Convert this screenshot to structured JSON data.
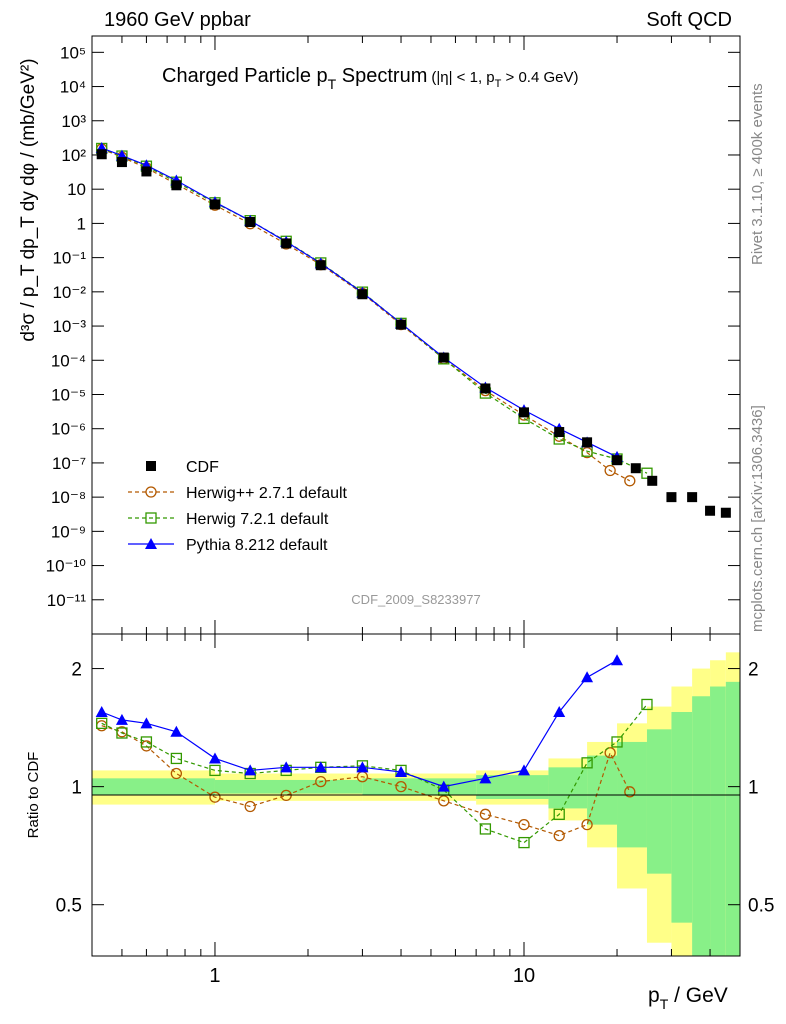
{
  "header": {
    "left": "1960 GeV ppbar",
    "right": "Soft QCD"
  },
  "chart_data": {
    "type": "scatter",
    "title_main": "Charged Particle p",
    "title_main_sub": "T",
    "title_main_rest": " Spectrum",
    "title_cut_a": "(|η| < 1, p",
    "title_cut_sub": "T",
    "title_cut_b": " > 0.4 GeV)",
    "xlabel_main": "p",
    "xlabel_sub": "T",
    "xlabel_rest": " / GeV",
    "ylabel": "d³σ / p_T dp_T dy dφ / (mb/GeV²)",
    "ratio_ylabel": "Ratio to CDF",
    "analysis_id": "CDF_2009_S8233977",
    "side_label_top": "Rivet 3.1.10, ≥ 400k events",
    "side_label_bottom": "mcplots.cern.ch [arXiv:1306.3436]",
    "x_scale": "log",
    "y_scale": "log",
    "xlim": [
      0.4,
      50
    ],
    "ylim": [
      1e-12,
      300000.0
    ],
    "ratio_ylim": [
      0.37,
      2.45
    ],
    "x_ticks": [
      {
        "value": 1,
        "label": "1"
      },
      {
        "value": 10,
        "label": "10"
      }
    ],
    "y_ticks": [
      {
        "value": 100000.0,
        "label": "10⁵"
      },
      {
        "value": 10000.0,
        "label": "10⁴"
      },
      {
        "value": 1000.0,
        "label": "10³"
      },
      {
        "value": 100.0,
        "label": "10²"
      },
      {
        "value": 10,
        "label": "10"
      },
      {
        "value": 1,
        "label": "1"
      },
      {
        "value": 0.1,
        "label": "10⁻¹"
      },
      {
        "value": 0.01,
        "label": "10⁻²"
      },
      {
        "value": 0.001,
        "label": "10⁻³"
      },
      {
        "value": 0.0001,
        "label": "10⁻⁴"
      },
      {
        "value": 1e-05,
        "label": "10⁻⁵"
      },
      {
        "value": 1e-06,
        "label": "10⁻⁶"
      },
      {
        "value": 1e-07,
        "label": "10⁻⁷"
      },
      {
        "value": 1e-08,
        "label": "10⁻⁸"
      },
      {
        "value": 1e-09,
        "label": "10⁻⁹"
      },
      {
        "value": 1e-10,
        "label": "10⁻¹⁰"
      },
      {
        "value": 1e-11,
        "label": "10⁻¹¹"
      }
    ],
    "ratio_ticks": [
      {
        "value": 2,
        "label": "2"
      },
      {
        "value": 1,
        "label": "1"
      },
      {
        "value": 0.5,
        "label": "0.5"
      }
    ],
    "legend": [
      {
        "name": "CDF",
        "color": "#000000",
        "marker": "square-filled",
        "line": "none"
      },
      {
        "name": "Herwig++ 2.7.1 default",
        "color": "#b35900",
        "marker": "circle-open",
        "line": "dashed"
      },
      {
        "name": "Herwig 7.2.1 default",
        "color": "#339900",
        "marker": "square-open",
        "line": "dashed"
      },
      {
        "name": "Pythia 8.212 default",
        "color": "#0000ff",
        "marker": "triangle-filled",
        "line": "solid"
      }
    ],
    "cdf": {
      "x": [
        0.43,
        0.5,
        0.6,
        0.75,
        1.0,
        1.3,
        1.7,
        2.2,
        3.0,
        4.0,
        5.5,
        7.5,
        10.0,
        13.0,
        16.0,
        20.0,
        23.0,
        26.0,
        30.0,
        35.0,
        40.0,
        45.0
      ],
      "y": [
        105,
        62,
        33,
        13,
        3.6,
        1.1,
        0.26,
        0.06,
        0.0085,
        0.0011,
        0.00012,
        1.5e-05,
        3e-06,
        8e-07,
        4e-07,
        1.2e-07,
        7e-08,
        3e-08,
        1e-08,
        1e-08,
        4e-09,
        3.5e-09
      ]
    },
    "herwigpp": {
      "x": [
        0.43,
        0.5,
        0.6,
        0.75,
        1.0,
        1.3,
        1.7,
        2.2,
        3.0,
        4.0,
        5.5,
        7.5,
        10.0,
        13.0,
        16.0,
        19.0,
        22.0
      ],
      "y": [
        150,
        86,
        42,
        14,
        3.4,
        0.98,
        0.25,
        0.062,
        0.009,
        0.0011,
        0.00011,
        1.3e-05,
        2.5e-06,
        6e-07,
        2e-07,
        6e-08,
        3e-08
      ],
      "ratio": [
        1.43,
        1.38,
        1.27,
        1.08,
        0.94,
        0.89,
        0.95,
        1.03,
        1.06,
        1.0,
        0.92,
        0.85,
        0.8,
        0.75,
        0.8,
        1.22,
        0.97
      ]
    },
    "herwig7": {
      "x": [
        0.43,
        0.5,
        0.6,
        0.75,
        1.0,
        1.3,
        1.7,
        2.2,
        3.0,
        4.0,
        5.5,
        7.5,
        10.0,
        13.0,
        16.0,
        20.0,
        25.0
      ],
      "y": [
        155,
        93,
        47,
        16,
        4.0,
        1.2,
        0.3,
        0.07,
        0.0098,
        0.0012,
        0.00011,
        1.1e-05,
        2e-06,
        5e-07,
        2.2e-07,
        1.3e-07,
        5e-08
      ],
      "ratio": [
        1.45,
        1.37,
        1.3,
        1.18,
        1.1,
        1.08,
        1.1,
        1.12,
        1.13,
        1.1,
        0.98,
        0.78,
        0.72,
        0.85,
        1.15,
        1.3,
        1.62
      ]
    },
    "pythia": {
      "x": [
        0.43,
        0.5,
        0.6,
        0.75,
        1.0,
        1.3,
        1.7,
        2.2,
        3.0,
        4.0,
        5.5,
        7.5,
        10.0,
        13.0,
        16.0,
        20.0
      ],
      "y": [
        160,
        96,
        50,
        18,
        4.2,
        1.2,
        0.29,
        0.068,
        0.0095,
        0.0012,
        0.00012,
        1.6e-05,
        3.5e-06,
        1e-06,
        4e-07,
        1.5e-07
      ],
      "ratio": [
        1.55,
        1.48,
        1.45,
        1.38,
        1.18,
        1.1,
        1.12,
        1.12,
        1.12,
        1.09,
        1.0,
        1.05,
        1.1,
        1.55,
        1.9,
        2.1
      ]
    },
    "uncertainty_bands": {
      "x_edges": [
        0.4,
        1,
        3,
        7,
        12,
        16,
        20,
        25,
        30,
        35,
        40,
        45,
        50
      ],
      "inner_halfwidth": [
        0.05,
        0.04,
        0.05,
        0.07,
        0.12,
        0.2,
        0.3,
        0.4,
        0.55,
        0.7,
        0.8,
        0.85
      ],
      "outer_halfwidth": [
        0.1,
        0.08,
        0.08,
        0.1,
        0.18,
        0.3,
        0.45,
        0.6,
        0.8,
        1.0,
        1.1,
        1.2
      ]
    }
  }
}
